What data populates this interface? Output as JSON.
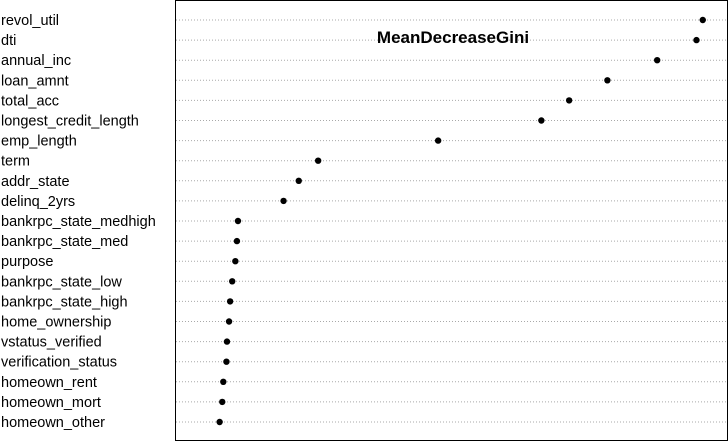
{
  "chart_data": {
    "type": "scatter",
    "subtype": "dotchart",
    "title": "MeanDecreaseGini",
    "xlabel": "",
    "ylabel": "",
    "grid": true,
    "legend": "none",
    "xlim": [
      0,
      100
    ],
    "point_color": "#000000",
    "grid_color": "#a9a9a9",
    "categories": [
      "revol_util",
      "dti",
      "annual_inc",
      "loan_amnt",
      "total_acc",
      "longest_credit_length",
      "emp_length",
      "term",
      "addr_state",
      "delinq_2yrs",
      "bankrpc_state_medhigh",
      "bankrpc_state_med",
      "purpose",
      "bankrpc_state_low",
      "bankrpc_state_high",
      "home_ownership",
      "vstatus_verified",
      "verification_status",
      "homeown_rent",
      "homeown_mort",
      "homeown_other"
    ],
    "values": [
      99.0,
      97.8,
      90.3,
      80.8,
      73.5,
      68.2,
      48.5,
      25.6,
      21.9,
      19.0,
      10.3,
      10.1,
      9.8,
      9.2,
      8.8,
      8.6,
      8.2,
      8.1,
      7.5,
      7.3,
      6.8
    ]
  }
}
